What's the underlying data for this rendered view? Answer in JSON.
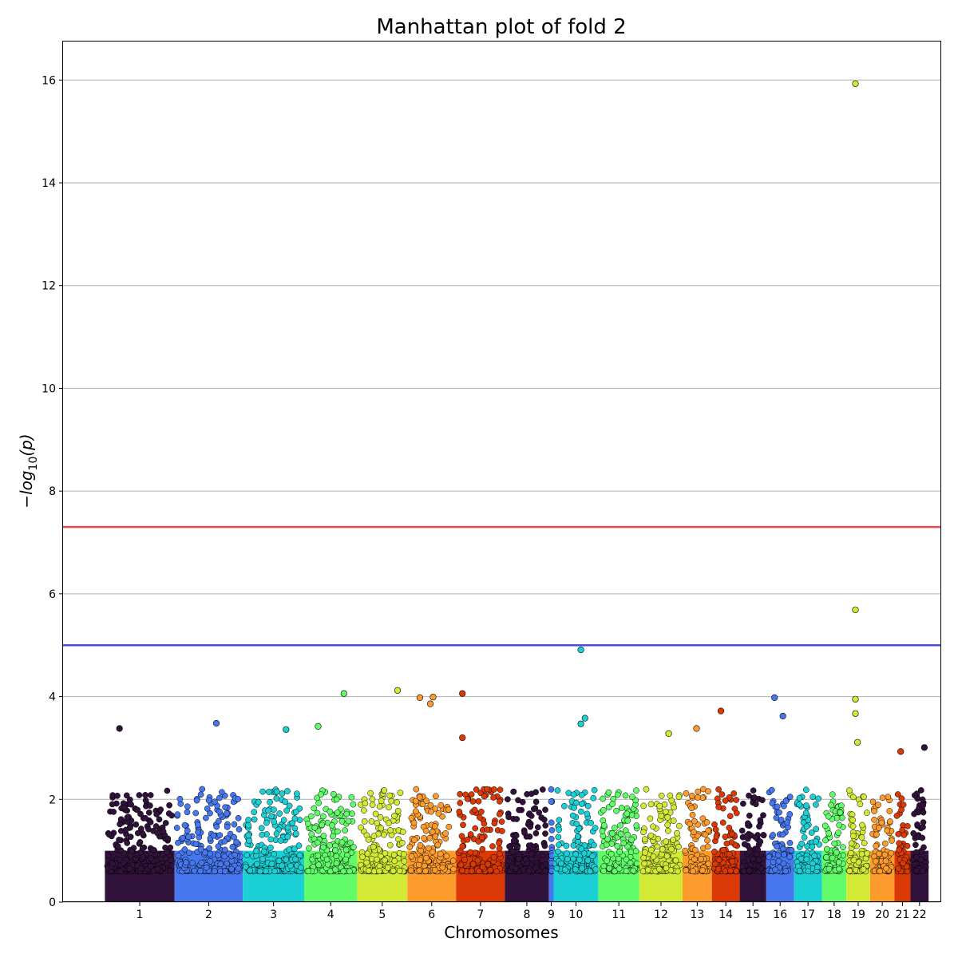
{
  "chart_data": {
    "type": "scatter",
    "title": "Manhattan plot of fold 2",
    "xlabel": "Chromosomes",
    "ylabel_parts": [
      "−log",
      "10",
      "(p)"
    ],
    "ylim": [
      0,
      16.75
    ],
    "yticks": [
      0,
      2,
      4,
      6,
      8,
      10,
      12,
      14,
      16
    ],
    "grid": "y",
    "thresholds": [
      {
        "value": 7.3,
        "color": "#e84a4a"
      },
      {
        "value": 5.0,
        "color": "#4a4ae8"
      }
    ],
    "chromosomes": [
      {
        "label": "1",
        "start": 0.0,
        "end": 1.0,
        "color": "#30123b"
      },
      {
        "label": "2",
        "start": 1.0,
        "end": 1.98,
        "color": "#4777ef"
      },
      {
        "label": "3",
        "start": 1.98,
        "end": 2.86,
        "color": "#1bd0d5"
      },
      {
        "label": "4",
        "start": 2.86,
        "end": 3.62,
        "color": "#62fc6b"
      },
      {
        "label": "5",
        "start": 3.62,
        "end": 4.34,
        "color": "#d2e935"
      },
      {
        "label": "6",
        "start": 4.34,
        "end": 5.04,
        "color": "#fe9b2d"
      },
      {
        "label": "7",
        "start": 5.04,
        "end": 5.74,
        "color": "#db3a07"
      },
      {
        "label": "8",
        "start": 5.74,
        "end": 6.37,
        "color": "#30123b"
      },
      {
        "label": "9",
        "start": 6.37,
        "end": 6.44,
        "color": "#4777ef"
      },
      {
        "label": "10",
        "start": 6.44,
        "end": 7.08,
        "color": "#1bd0d5"
      },
      {
        "label": "11",
        "start": 7.08,
        "end": 7.67,
        "color": "#62fc6b"
      },
      {
        "label": "12",
        "start": 7.67,
        "end": 8.29,
        "color": "#d2e935"
      },
      {
        "label": "13",
        "start": 8.29,
        "end": 8.71,
        "color": "#fe9b2d"
      },
      {
        "label": "14",
        "start": 8.71,
        "end": 9.11,
        "color": "#db3a07"
      },
      {
        "label": "15",
        "start": 9.11,
        "end": 9.49,
        "color": "#30123b"
      },
      {
        "label": "16",
        "start": 9.49,
        "end": 9.89,
        "color": "#4777ef"
      },
      {
        "label": "17",
        "start": 9.89,
        "end": 10.29,
        "color": "#1bd0d5"
      },
      {
        "label": "18",
        "start": 10.29,
        "end": 10.64,
        "color": "#62fc6b"
      },
      {
        "label": "19",
        "start": 10.64,
        "end": 10.98,
        "color": "#d2e935"
      },
      {
        "label": "20",
        "start": 10.98,
        "end": 11.33,
        "color": "#fe9b2d"
      },
      {
        "label": "21",
        "start": 11.33,
        "end": 11.56,
        "color": "#db3a07"
      },
      {
        "label": "22",
        "start": 11.56,
        "end": 11.82,
        "color": "#30123b"
      }
    ],
    "xlim": [
      -0.6,
      11.99
    ],
    "notable_points": [
      {
        "chrom": "19",
        "x": 10.77,
        "y": 15.93
      },
      {
        "chrom": "19",
        "x": 10.77,
        "y": 5.69
      },
      {
        "chrom": "19",
        "x": 10.77,
        "y": 3.95
      },
      {
        "chrom": "19",
        "x": 10.77,
        "y": 3.67
      },
      {
        "chrom": "19",
        "x": 10.8,
        "y": 3.11
      },
      {
        "chrom": "10",
        "x": 6.83,
        "y": 4.91
      },
      {
        "chrom": "10",
        "x": 6.89,
        "y": 3.58
      },
      {
        "chrom": "10",
        "x": 6.83,
        "y": 3.47
      },
      {
        "chrom": "5",
        "x": 4.2,
        "y": 4.12
      },
      {
        "chrom": "4",
        "x": 3.43,
        "y": 4.06
      },
      {
        "chrom": "4",
        "x": 3.06,
        "y": 3.42
      },
      {
        "chrom": "7",
        "x": 5.13,
        "y": 4.06
      },
      {
        "chrom": "7",
        "x": 5.13,
        "y": 3.2
      },
      {
        "chrom": "6",
        "x": 4.71,
        "y": 3.99
      },
      {
        "chrom": "6",
        "x": 4.52,
        "y": 3.98
      },
      {
        "chrom": "6",
        "x": 4.67,
        "y": 3.86
      },
      {
        "chrom": "16",
        "x": 9.61,
        "y": 3.98
      },
      {
        "chrom": "16",
        "x": 9.73,
        "y": 3.62
      },
      {
        "chrom": "14",
        "x": 8.84,
        "y": 3.72
      },
      {
        "chrom": "1",
        "x": 0.21,
        "y": 3.38
      },
      {
        "chrom": "2",
        "x": 1.6,
        "y": 3.48
      },
      {
        "chrom": "3",
        "x": 2.6,
        "y": 3.36
      },
      {
        "chrom": "13",
        "x": 8.49,
        "y": 3.38
      },
      {
        "chrom": "12",
        "x": 8.09,
        "y": 3.28
      },
      {
        "chrom": "22",
        "x": 11.76,
        "y": 3.01
      },
      {
        "chrom": "21",
        "x": 11.42,
        "y": 2.93
      }
    ],
    "seed": 20240602
  }
}
